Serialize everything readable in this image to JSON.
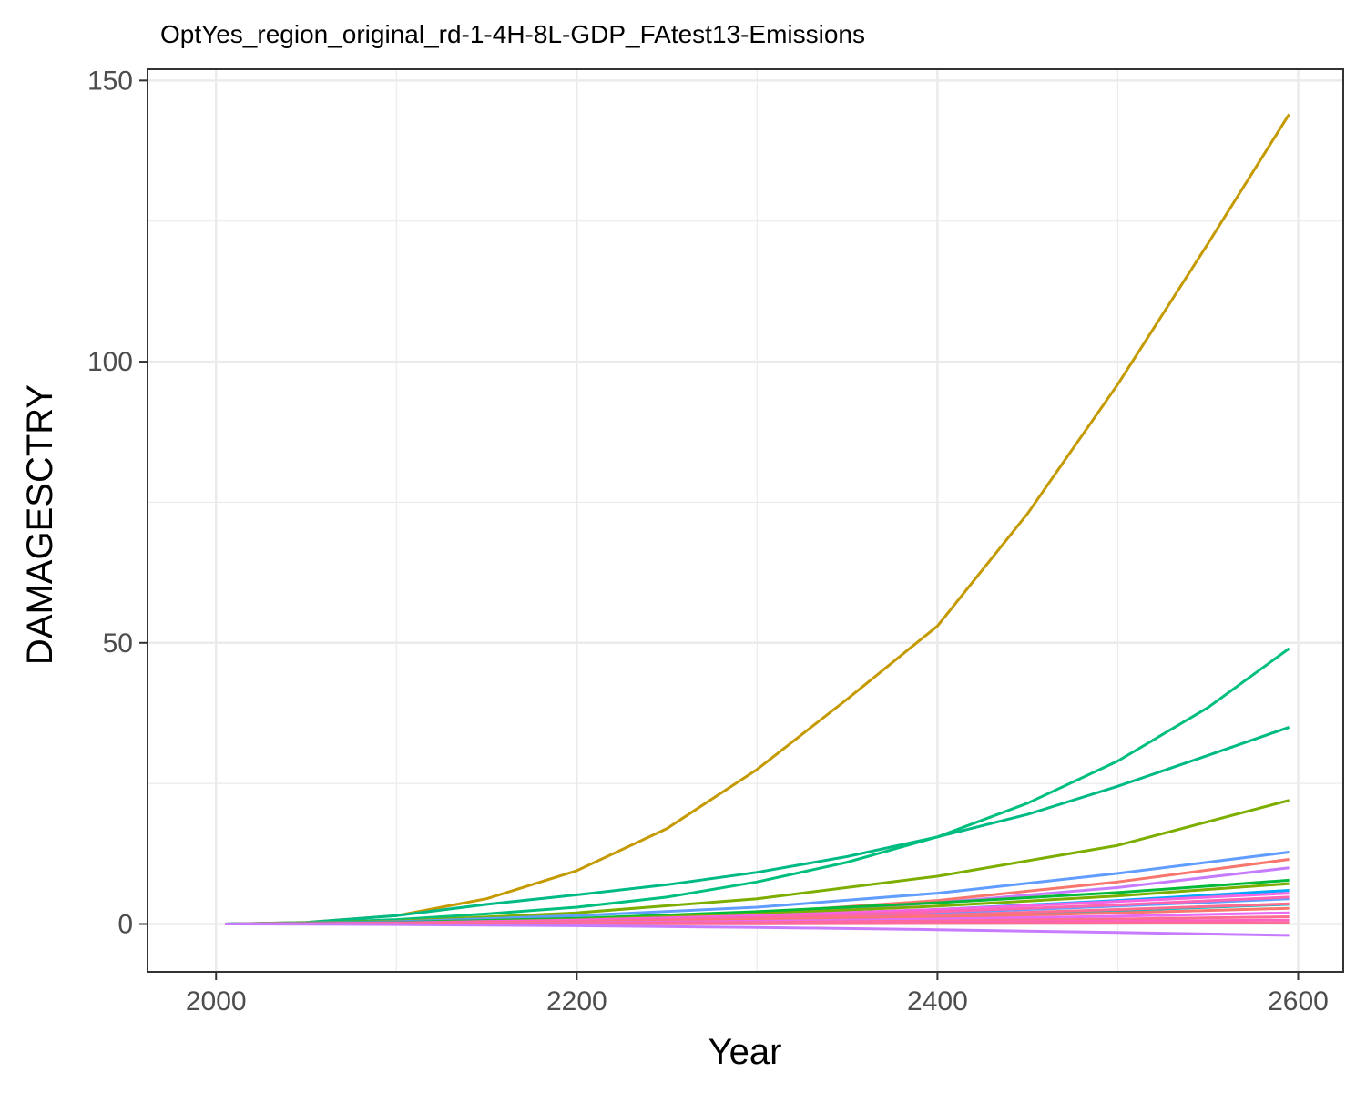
{
  "chart_data": {
    "type": "line",
    "title": "OptYes_region_original_rd-1-4H-8L-GDP_FAtest13-Emissions",
    "xlabel": "Year",
    "ylabel": "DAMAGESCTRY",
    "xlim": [
      1962,
      2625
    ],
    "ylim": [
      -8.5,
      152
    ],
    "x_ticks": [
      2000,
      2200,
      2400,
      2600
    ],
    "y_ticks": [
      0,
      50,
      100,
      150
    ],
    "x_tick_labels": [
      "2000",
      "2200",
      "2400",
      "2600"
    ],
    "y_tick_labels": [
      "0",
      "50",
      "100",
      "150"
    ],
    "grid": true,
    "legend": "none",
    "series": [
      {
        "color": "#C49A00",
        "x": [
          2005,
          2050,
          2100,
          2150,
          2200,
          2250,
          2300,
          2350,
          2400,
          2450,
          2500,
          2550,
          2595
        ],
        "y": [
          0,
          0.3,
          1.5,
          4.5,
          9.5,
          17,
          27.5,
          40,
          53,
          73,
          96,
          121,
          144
        ]
      },
      {
        "color": "#00BA86",
        "x": [
          2005,
          2050,
          2100,
          2150,
          2200,
          2250,
          2300,
          2350,
          2400,
          2450,
          2500,
          2550,
          2595
        ],
        "y": [
          0,
          0.3,
          1.5,
          3.5,
          5.2,
          7,
          9.2,
          12,
          15.5,
          19.5,
          24.5,
          30,
          35
        ]
      },
      {
        "color": "#00BF7D",
        "x": [
          2005,
          2050,
          2100,
          2150,
          2200,
          2250,
          2300,
          2350,
          2400,
          2450,
          2500,
          2550,
          2595
        ],
        "y": [
          0,
          0.2,
          0.8,
          1.8,
          3,
          4.8,
          7.5,
          11,
          15.5,
          21.5,
          29,
          38.5,
          49
        ]
      },
      {
        "color": "#7CAE00",
        "x": [
          2005,
          2100,
          2200,
          2300,
          2400,
          2500,
          2595
        ],
        "y": [
          0,
          0.5,
          2,
          4.5,
          8.5,
          14,
          22
        ]
      },
      {
        "color": "#619CFF",
        "x": [
          2005,
          2100,
          2200,
          2300,
          2400,
          2500,
          2595
        ],
        "y": [
          0,
          0.4,
          1.5,
          3,
          5.5,
          9,
          12.8
        ]
      },
      {
        "color": "#F8766D",
        "x": [
          2005,
          2100,
          2200,
          2300,
          2400,
          2500,
          2595
        ],
        "y": [
          0,
          0.2,
          0.9,
          2,
          4.2,
          7.5,
          11.5
        ]
      },
      {
        "color": "#C77CFF",
        "x": [
          2005,
          2100,
          2200,
          2300,
          2400,
          2500,
          2595
        ],
        "y": [
          0,
          0.2,
          0.8,
          1.8,
          3.8,
          6.5,
          10
        ]
      },
      {
        "color": "#00BA38",
        "x": [
          2005,
          2100,
          2200,
          2300,
          2400,
          2500,
          2595
        ],
        "y": [
          0,
          0.3,
          1,
          2.2,
          3.8,
          5.6,
          7.8
        ]
      },
      {
        "color": "#7CAE00",
        "x": [
          2005,
          2100,
          2200,
          2300,
          2400,
          2500,
          2595
        ],
        "y": [
          0,
          0.2,
          0.8,
          1.8,
          3.2,
          5,
          7.2
        ]
      },
      {
        "color": "#00A9FF",
        "x": [
          2005,
          2100,
          2200,
          2300,
          2400,
          2500,
          2595
        ],
        "y": [
          0,
          0.2,
          0.6,
          1.4,
          2.6,
          4.2,
          6
        ]
      },
      {
        "color": "#619CFF",
        "x": [
          2005,
          2100,
          2200,
          2300,
          2400,
          2500,
          2595
        ],
        "y": [
          0,
          0.15,
          0.5,
          1.1,
          2,
          3.2,
          4.5
        ]
      },
      {
        "color": "#00BFC4",
        "x": [
          2005,
          2100,
          2200,
          2300,
          2400,
          2500,
          2595
        ],
        "y": [
          0,
          0.1,
          0.4,
          0.8,
          1.5,
          2.4,
          3.5
        ]
      },
      {
        "color": "#F564E3",
        "x": [
          2005,
          2100,
          2200,
          2300,
          2400,
          2500,
          2595
        ],
        "y": [
          0,
          0.2,
          0.7,
          1.5,
          2.6,
          4,
          5.5
        ]
      },
      {
        "color": "#FF64B0",
        "x": [
          2005,
          2100,
          2200,
          2300,
          2400,
          2500,
          2595
        ],
        "y": [
          0,
          0.15,
          0.5,
          1.2,
          2.2,
          3.4,
          4.8
        ]
      },
      {
        "color": "#FF6C91",
        "x": [
          2005,
          2100,
          2200,
          2300,
          2400,
          2500,
          2595
        ],
        "y": [
          0,
          0.1,
          0.4,
          0.9,
          1.6,
          2.6,
          3.6
        ]
      },
      {
        "color": "#F8766D",
        "x": [
          2005,
          2100,
          2200,
          2300,
          2400,
          2500,
          2595
        ],
        "y": [
          0,
          0.08,
          0.3,
          0.7,
          1.2,
          2,
          2.8
        ]
      },
      {
        "color": "#E76BF3",
        "x": [
          2005,
          2100,
          2200,
          2300,
          2400,
          2500,
          2595
        ],
        "y": [
          0,
          0.05,
          0.2,
          0.5,
          0.9,
          1.4,
          2
        ]
      },
      {
        "color": "#FF6C91",
        "x": [
          2005,
          2100,
          2200,
          2300,
          2400,
          2500,
          2595
        ],
        "y": [
          0,
          0.03,
          0.12,
          0.3,
          0.55,
          0.9,
          1.3
        ]
      },
      {
        "color": "#FF62BC",
        "x": [
          2005,
          2100,
          2200,
          2300,
          2400,
          2500,
          2595
        ],
        "y": [
          0,
          0.02,
          0.06,
          0.15,
          0.3,
          0.5,
          0.7
        ]
      },
      {
        "color": "#FF6C91",
        "x": [
          2005,
          2100,
          2200,
          2300,
          2400,
          2500,
          2595
        ],
        "y": [
          0,
          0,
          0.02,
          0.05,
          0.1,
          0.15,
          0.2
        ]
      },
      {
        "color": "#C77CFF",
        "x": [
          2005,
          2100,
          2200,
          2300,
          2400,
          2500,
          2595
        ],
        "y": [
          0,
          -0.1,
          -0.3,
          -0.6,
          -1,
          -1.5,
          -2
        ]
      }
    ]
  }
}
